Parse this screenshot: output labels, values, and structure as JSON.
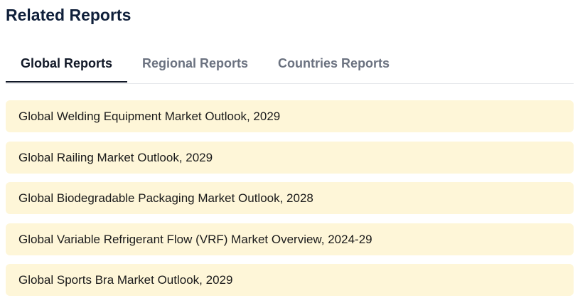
{
  "header": {
    "title": "Related Reports"
  },
  "tabs": [
    {
      "label": "Global Reports",
      "active": true
    },
    {
      "label": "Regional Reports",
      "active": false
    },
    {
      "label": "Countries Reports",
      "active": false
    }
  ],
  "reports": [
    {
      "title": "Global Welding Equipment Market Outlook, 2029"
    },
    {
      "title": "Global Railing Market Outlook, 2029"
    },
    {
      "title": "Global Biodegradable Packaging Market Outlook, 2028"
    },
    {
      "title": "Global Variable Refrigerant Flow (VRF) Market Overview, 2024-29"
    },
    {
      "title": "Global Sports Bra Market Outlook, 2029"
    }
  ],
  "colors": {
    "item_background": "#fef6d8",
    "active_tab_underline": "#111827",
    "title_color": "#0f1f3a"
  }
}
